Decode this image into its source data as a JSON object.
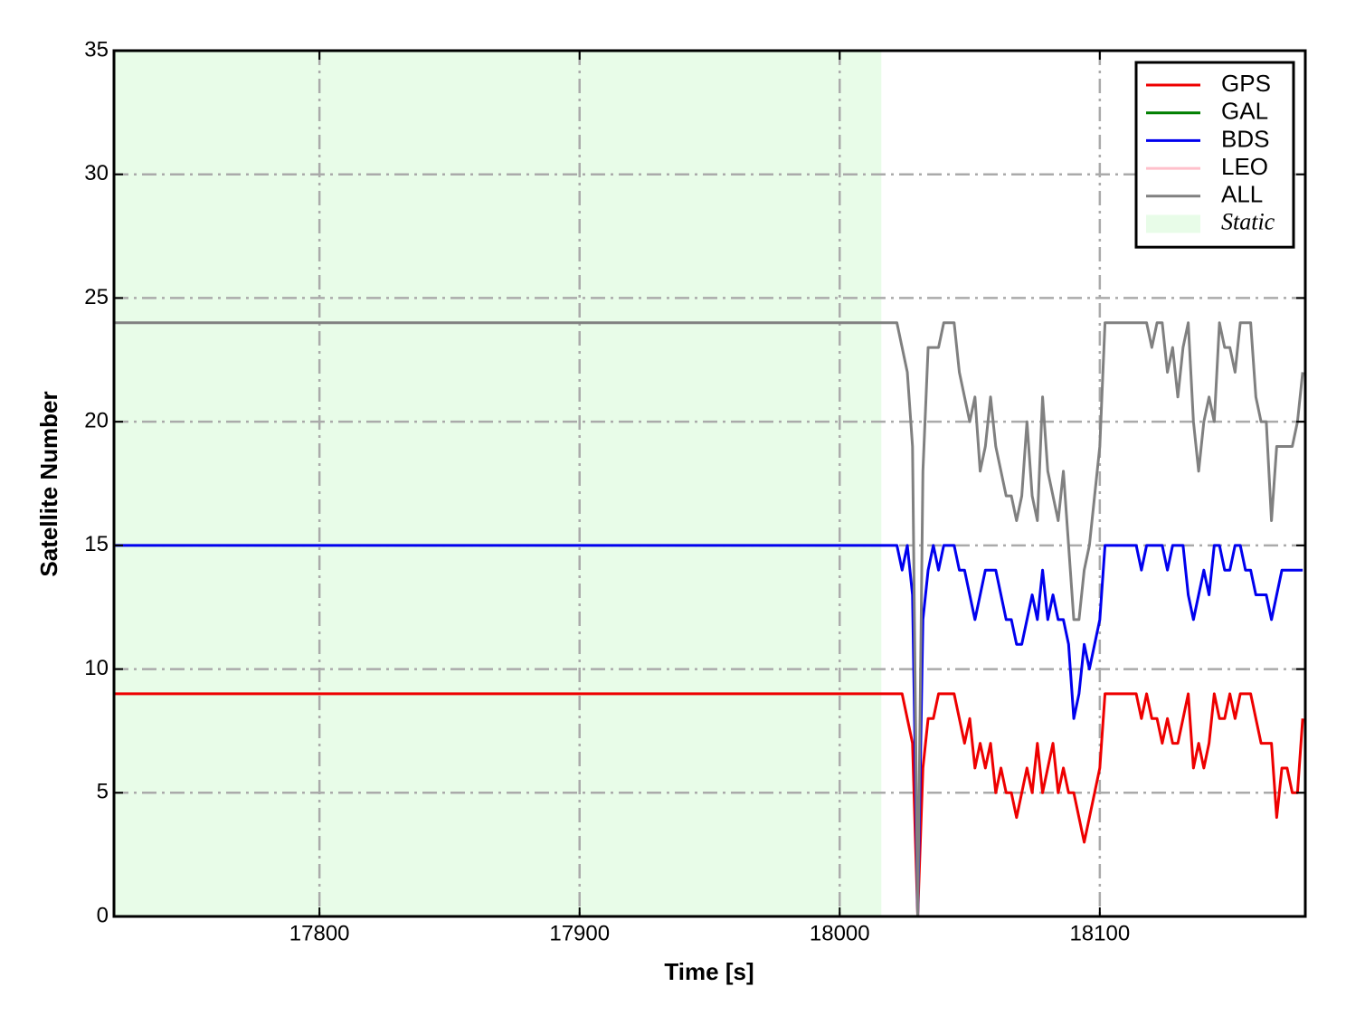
{
  "chart_data": {
    "type": "line",
    "x_label": "Time [s]",
    "y_label": "Satellite Number",
    "xlim": [
      17721,
      18179
    ],
    "ylim": [
      0,
      35
    ],
    "xticks": [
      17800,
      17900,
      18000,
      18100
    ],
    "yticks": [
      0,
      5,
      10,
      15,
      20,
      25,
      30,
      35
    ],
    "grid": true,
    "legend": "upper right",
    "shaded_region": {
      "label": "Static",
      "xlim": [
        17721,
        18016
      ],
      "color": "#e8fce8"
    },
    "x": [
      17721,
      18022,
      18024,
      18026,
      18028,
      18030,
      18032,
      18034,
      18036,
      18038,
      18040,
      18042,
      18044,
      18046,
      18048,
      18050,
      18052,
      18054,
      18056,
      18058,
      18060,
      18062,
      18064,
      18066,
      18068,
      18070,
      18072,
      18074,
      18076,
      18078,
      18080,
      18082,
      18084,
      18086,
      18088,
      18090,
      18092,
      18094,
      18096,
      18098,
      18100,
      18102,
      18104,
      18106,
      18108,
      18110,
      18112,
      18114,
      18116,
      18118,
      18120,
      18122,
      18124,
      18126,
      18128,
      18130,
      18132,
      18134,
      18136,
      18138,
      18140,
      18142,
      18144,
      18146,
      18148,
      18150,
      18152,
      18154,
      18156,
      18158,
      18160,
      18162,
      18164,
      18166,
      18168,
      18170,
      18172,
      18174,
      18176,
      18178
    ],
    "series": [
      {
        "name": "GPS",
        "color": "#ee0000",
        "values": [
          9,
          9,
          9,
          8,
          7,
          0,
          6,
          8,
          8,
          9,
          9,
          9,
          9,
          8,
          7,
          8,
          6,
          7,
          6,
          7,
          5,
          6,
          5,
          5,
          4,
          5,
          6,
          5,
          7,
          5,
          6,
          7,
          5,
          6,
          5,
          5,
          4,
          3,
          4,
          5,
          6,
          9,
          9,
          9,
          9,
          9,
          9,
          9,
          8,
          9,
          8,
          8,
          7,
          8,
          7,
          7,
          8,
          9,
          6,
          7,
          6,
          7,
          9,
          8,
          8,
          9,
          8,
          9,
          9,
          9,
          8,
          7,
          7,
          7,
          4,
          6,
          6,
          5,
          5,
          8
        ]
      },
      {
        "name": "GAL",
        "color": "#007f00",
        "values": [
          0,
          0,
          0,
          0,
          0,
          0,
          0,
          0,
          0,
          0,
          0,
          0,
          0,
          0,
          0,
          0,
          0,
          0,
          0,
          0,
          0,
          0,
          0,
          0,
          0,
          0,
          0,
          0,
          0,
          0,
          0,
          0,
          0,
          0,
          0,
          0,
          0,
          0,
          0,
          0,
          0,
          0,
          0,
          0,
          0,
          0,
          0,
          0,
          0,
          0,
          0,
          0,
          0,
          0,
          0,
          0,
          0,
          0,
          0,
          0,
          0,
          0,
          0,
          0,
          0,
          0,
          0,
          0,
          0,
          0,
          0,
          0,
          0,
          0,
          0,
          0,
          0,
          0,
          0,
          0
        ]
      },
      {
        "name": "BDS",
        "color": "#0000ee",
        "values": [
          15,
          15,
          14,
          15,
          13,
          0,
          12,
          14,
          15,
          14,
          15,
          15,
          15,
          14,
          14,
          13,
          12,
          13,
          14,
          14,
          14,
          13,
          12,
          12,
          11,
          11,
          12,
          13,
          12,
          14,
          12,
          13,
          12,
          12,
          11,
          8,
          9,
          11,
          10,
          11,
          12,
          15,
          15,
          15,
          15,
          15,
          15,
          15,
          14,
          15,
          15,
          15,
          15,
          14,
          15,
          15,
          15,
          13,
          12,
          13,
          14,
          13,
          15,
          15,
          14,
          14,
          15,
          15,
          14,
          14,
          13,
          13,
          13,
          12,
          13,
          14,
          14,
          14,
          14,
          14
        ]
      },
      {
        "name": "LEO",
        "color": "#ffc0cb",
        "values": [
          0,
          0,
          0,
          0,
          0,
          0,
          0,
          0,
          0,
          0,
          0,
          0,
          0,
          0,
          0,
          0,
          0,
          0,
          0,
          0,
          0,
          0,
          0,
          0,
          0,
          0,
          0,
          0,
          0,
          0,
          0,
          0,
          0,
          0,
          0,
          0,
          0,
          0,
          0,
          0,
          0,
          0,
          0,
          0,
          0,
          0,
          0,
          0,
          0,
          0,
          0,
          0,
          0,
          0,
          0,
          0,
          0,
          0,
          0,
          0,
          0,
          0,
          0,
          0,
          0,
          0,
          0,
          0,
          0,
          0,
          0,
          0,
          0,
          0,
          0,
          0,
          0,
          0,
          0,
          0
        ]
      },
      {
        "name": "ALL",
        "color": "#808080",
        "values": [
          24,
          24,
          23,
          22,
          19,
          0,
          18,
          23,
          23,
          23,
          24,
          24,
          24,
          22,
          21,
          20,
          21,
          18,
          19,
          21,
          19,
          18,
          17,
          17,
          16,
          17,
          20,
          17,
          16,
          21,
          18,
          17,
          16,
          18,
          15,
          12,
          12,
          14,
          15,
          17,
          19,
          24,
          24,
          24,
          24,
          24,
          24,
          24,
          24,
          24,
          23,
          24,
          24,
          22,
          23,
          21,
          23,
          24,
          20,
          18,
          20,
          21,
          20,
          24,
          23,
          23,
          22,
          24,
          24,
          24,
          21,
          20,
          20,
          16,
          19,
          19,
          19,
          19,
          20,
          22
        ]
      }
    ]
  }
}
